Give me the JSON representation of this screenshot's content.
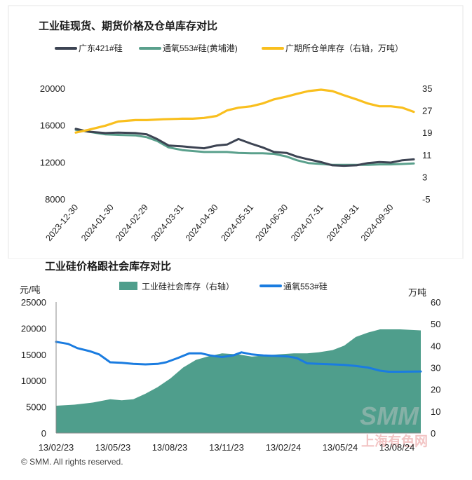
{
  "chart_data": [
    {
      "type": "line",
      "title": "工业硅现货、期货价格及仓单库存对比",
      "legend_position": "top",
      "x_ticks": [
        "2023-12-30",
        "2024-01-30",
        "2024-02-29",
        "2024-03-31",
        "2024-04-30",
        "2024-05-31",
        "2024-06-30",
        "2024-07-31",
        "2024-08-31",
        "2024-09-30"
      ],
      "y_left": {
        "ticks": [
          8000,
          12000,
          16000,
          20000
        ],
        "ylim": [
          8000,
          20000
        ]
      },
      "y_right": {
        "ticks": [
          -5,
          3,
          11,
          19,
          27,
          35
        ],
        "ylim": [
          -5,
          35
        ]
      },
      "x_range": [
        "2023-12-30",
        "2024-10-20"
      ],
      "series": [
        {
          "name": "广东421#硅",
          "color": "#3d4453",
          "axis": "left",
          "points": [
            [
              "2023-12-30",
              15600
            ],
            [
              "2024-01-10",
              15300
            ],
            [
              "2024-01-25",
              15150
            ],
            [
              "2024-02-05",
              15200
            ],
            [
              "2024-02-20",
              15150
            ],
            [
              "2024-03-01",
              15000
            ],
            [
              "2024-03-10",
              14500
            ],
            [
              "2024-03-20",
              13800
            ],
            [
              "2024-04-01",
              13700
            ],
            [
              "2024-04-10",
              13600
            ],
            [
              "2024-04-20",
              13500
            ],
            [
              "2024-05-01",
              13800
            ],
            [
              "2024-05-10",
              13900
            ],
            [
              "2024-05-20",
              14500
            ],
            [
              "2024-05-31",
              14000
            ],
            [
              "2024-06-10",
              13600
            ],
            [
              "2024-06-20",
              13100
            ],
            [
              "2024-07-01",
              13000
            ],
            [
              "2024-07-10",
              12600
            ],
            [
              "2024-07-20",
              12300
            ],
            [
              "2024-07-31",
              12000
            ],
            [
              "2024-08-10",
              11650
            ],
            [
              "2024-08-20",
              11600
            ],
            [
              "2024-08-31",
              11650
            ],
            [
              "2024-09-10",
              11900
            ],
            [
              "2024-09-20",
              12000
            ],
            [
              "2024-09-30",
              11950
            ],
            [
              "2024-10-10",
              12200
            ],
            [
              "2024-10-20",
              12300
            ]
          ]
        },
        {
          "name": "通氧553#硅(黄埔港)",
          "color": "#5aa08c",
          "axis": "left",
          "points": [
            [
              "2023-12-30",
              15500
            ],
            [
              "2024-01-10",
              15300
            ],
            [
              "2024-01-25",
              15000
            ],
            [
              "2024-02-05",
              14950
            ],
            [
              "2024-02-20",
              14900
            ],
            [
              "2024-03-01",
              14700
            ],
            [
              "2024-03-10",
              14300
            ],
            [
              "2024-03-20",
              13600
            ],
            [
              "2024-04-01",
              13300
            ],
            [
              "2024-04-10",
              13200
            ],
            [
              "2024-04-20",
              13100
            ],
            [
              "2024-05-01",
              13100
            ],
            [
              "2024-05-10",
              13100
            ],
            [
              "2024-05-20",
              13000
            ],
            [
              "2024-05-31",
              12950
            ],
            [
              "2024-06-10",
              12950
            ],
            [
              "2024-06-20",
              12900
            ],
            [
              "2024-07-01",
              12600
            ],
            [
              "2024-07-10",
              12200
            ],
            [
              "2024-07-20",
              11900
            ],
            [
              "2024-07-31",
              11800
            ],
            [
              "2024-08-10",
              11700
            ],
            [
              "2024-08-20",
              11700
            ],
            [
              "2024-08-31",
              11700
            ],
            [
              "2024-09-10",
              11700
            ],
            [
              "2024-09-20",
              11750
            ],
            [
              "2024-09-30",
              11750
            ],
            [
              "2024-10-10",
              11800
            ],
            [
              "2024-10-20",
              11850
            ]
          ]
        },
        {
          "name": "广期所仓单库存（右轴，万吨）",
          "color": "#f9bf1e",
          "axis": "right",
          "points": [
            [
              "2023-12-30",
              19.0
            ],
            [
              "2024-01-10",
              20.0
            ],
            [
              "2024-01-25",
              21.5
            ],
            [
              "2024-02-05",
              23.0
            ],
            [
              "2024-02-20",
              23.5
            ],
            [
              "2024-03-01",
              23.5
            ],
            [
              "2024-03-15",
              23.8
            ],
            [
              "2024-04-01",
              24.0
            ],
            [
              "2024-04-10",
              24.0
            ],
            [
              "2024-04-20",
              24.3
            ],
            [
              "2024-05-01",
              25.0
            ],
            [
              "2024-05-10",
              27.0
            ],
            [
              "2024-05-20",
              28.0
            ],
            [
              "2024-05-31",
              28.5
            ],
            [
              "2024-06-10",
              29.5
            ],
            [
              "2024-06-20",
              31.0
            ],
            [
              "2024-07-01",
              32.0
            ],
            [
              "2024-07-10",
              33.0
            ],
            [
              "2024-07-20",
              34.0
            ],
            [
              "2024-07-31",
              34.5
            ],
            [
              "2024-08-10",
              34.0
            ],
            [
              "2024-08-20",
              32.5
            ],
            [
              "2024-08-31",
              31.0
            ],
            [
              "2024-09-10",
              29.5
            ],
            [
              "2024-09-20",
              28.5
            ],
            [
              "2024-09-30",
              28.5
            ],
            [
              "2024-10-10",
              28.0
            ],
            [
              "2024-10-20",
              26.5
            ]
          ]
        }
      ]
    },
    {
      "type": "area",
      "title": "工业硅价格跟社会库存对比",
      "legend_position": "top",
      "y_left": {
        "unit": "元/吨",
        "ticks": [
          0,
          5000,
          10000,
          15000,
          20000,
          25000
        ],
        "ylim": [
          0,
          25000
        ]
      },
      "y_right": {
        "unit": "万吨",
        "ticks": [
          0,
          10,
          20,
          30,
          40,
          50,
          60
        ],
        "ylim": [
          0,
          60
        ]
      },
      "x_ticks": [
        "13/02/23",
        "13/05/23",
        "13/08/23",
        "13/11/23",
        "13/02/24",
        "13/05/24",
        "13/08/24"
      ],
      "x_range": [
        "2023-02-13",
        "2024-10-05"
      ],
      "series": [
        {
          "name": "工业硅社会库存（右轴）",
          "type": "area",
          "color": "#4f9e8c",
          "axis": "right",
          "points": [
            [
              "2023-02-13",
              12.5
            ],
            [
              "2023-03-15",
              13.0
            ],
            [
              "2023-04-15",
              14.0
            ],
            [
              "2023-05-13",
              15.5
            ],
            [
              "2023-06-01",
              15.0
            ],
            [
              "2023-06-20",
              15.5
            ],
            [
              "2023-07-10",
              18.0
            ],
            [
              "2023-07-30",
              21.0
            ],
            [
              "2023-08-20",
              25.0
            ],
            [
              "2023-09-10",
              30.0
            ],
            [
              "2023-10-01",
              33.5
            ],
            [
              "2023-10-20",
              35.0
            ],
            [
              "2023-11-13",
              36.5
            ],
            [
              "2023-12-10",
              36.0
            ],
            [
              "2024-01-01",
              35.0
            ],
            [
              "2024-01-20",
              35.5
            ],
            [
              "2024-02-13",
              36.0
            ],
            [
              "2024-03-10",
              36.5
            ],
            [
              "2024-04-01",
              36.5
            ],
            [
              "2024-04-20",
              37.0
            ],
            [
              "2024-05-13",
              38.0
            ],
            [
              "2024-06-01",
              40.0
            ],
            [
              "2024-06-20",
              44.0
            ],
            [
              "2024-07-10",
              46.0
            ],
            [
              "2024-07-30",
              47.5
            ],
            [
              "2024-08-13",
              47.5
            ],
            [
              "2024-09-01",
              47.5
            ],
            [
              "2024-10-05",
              47.0
            ]
          ]
        },
        {
          "name": "通氧553#硅",
          "type": "line",
          "color": "#1a7ce0",
          "axis": "left",
          "points": [
            [
              "2023-02-13",
              17400
            ],
            [
              "2023-03-05",
              17000
            ],
            [
              "2023-03-20",
              16200
            ],
            [
              "2023-04-10",
              15600
            ],
            [
              "2023-04-25",
              15000
            ],
            [
              "2023-05-13",
              13500
            ],
            [
              "2023-06-01",
              13400
            ],
            [
              "2023-06-20",
              13200
            ],
            [
              "2023-07-10",
              13100
            ],
            [
              "2023-07-30",
              13200
            ],
            [
              "2023-08-13",
              13500
            ],
            [
              "2023-09-01",
              14300
            ],
            [
              "2023-09-20",
              15200
            ],
            [
              "2023-10-10",
              15200
            ],
            [
              "2023-10-25",
              14800
            ],
            [
              "2023-11-13",
              14500
            ],
            [
              "2023-12-01",
              14800
            ],
            [
              "2023-12-15",
              15400
            ],
            [
              "2024-01-01",
              15000
            ],
            [
              "2024-01-20",
              14800
            ],
            [
              "2024-02-13",
              14700
            ],
            [
              "2024-03-01",
              14600
            ],
            [
              "2024-03-15",
              14300
            ],
            [
              "2024-04-01",
              13300
            ],
            [
              "2024-04-20",
              13200
            ],
            [
              "2024-05-13",
              13100
            ],
            [
              "2024-06-01",
              13000
            ],
            [
              "2024-06-20",
              12800
            ],
            [
              "2024-07-10",
              12500
            ],
            [
              "2024-07-30",
              11900
            ],
            [
              "2024-08-13",
              11700
            ],
            [
              "2024-09-01",
              11700
            ],
            [
              "2024-10-05",
              11750
            ]
          ]
        }
      ]
    }
  ],
  "footer": "© SMM. All rights reserved.",
  "watermark": {
    "logo_text": "SMM",
    "sub_text": "上海有色网"
  }
}
